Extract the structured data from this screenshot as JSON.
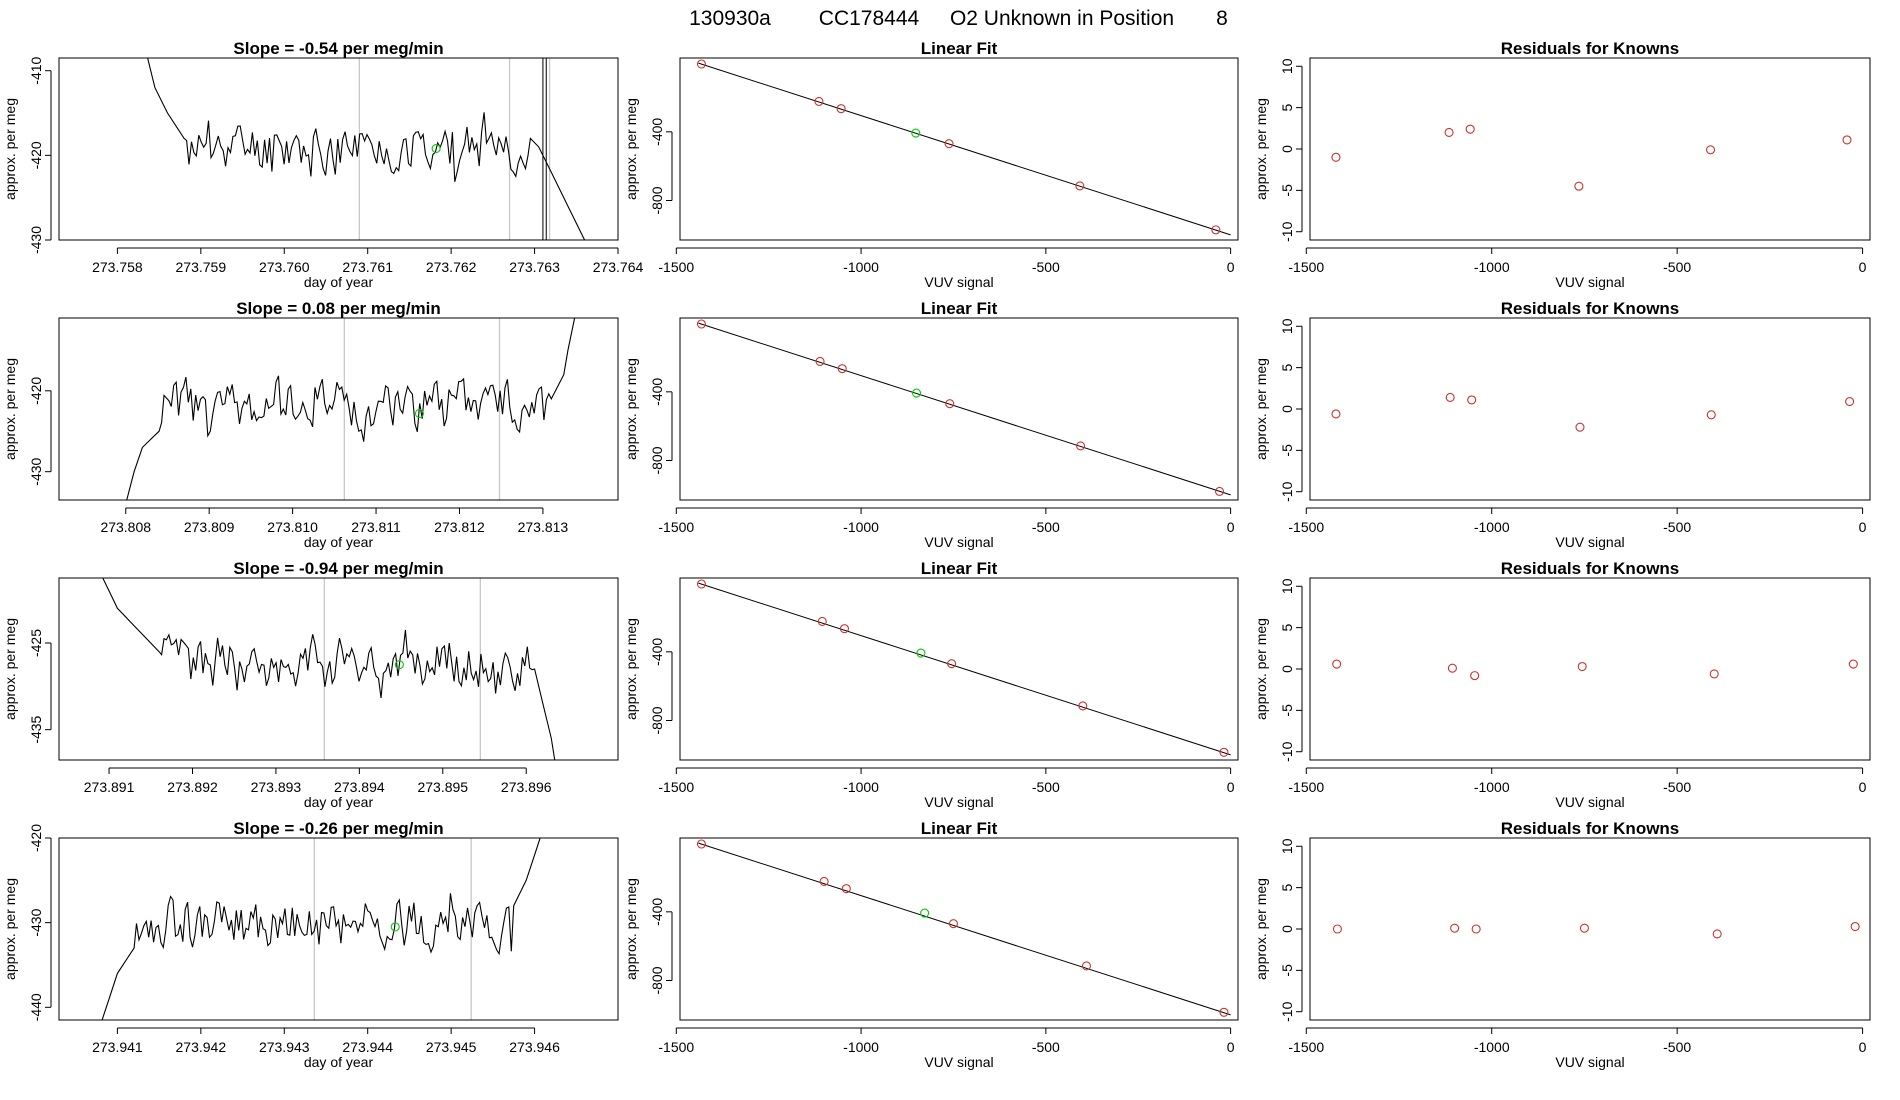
{
  "figure_title": {
    "run": "130930a",
    "tank": "CC178444",
    "description": "O2 Unknown in Position",
    "position": "8"
  },
  "colors": {
    "trace": "#000000",
    "marker_green": "#00cc00",
    "marker_red": "#d0302c",
    "gray_line": "#c8c8c8"
  },
  "chart_data": [
    {
      "type": "line",
      "row": 1,
      "col": 1,
      "title_prefix": "Slope = ",
      "slope": "-0.54",
      "title_suffix": " per meg/min",
      "xlabel": "day of year",
      "ylabel": "approx. per meg",
      "xlim": [
        273.7573,
        273.764
      ],
      "ylim": [
        -430,
        -408.5
      ],
      "xticks": [
        "273.758",
        "273.759",
        "273.760",
        "273.761",
        "273.762",
        "273.763",
        "273.764"
      ],
      "yticks": [
        "-410",
        "-420",
        "-430"
      ],
      "vlines": [
        273.7609,
        273.7627,
        273.76318
      ],
      "dark_vlines": [
        273.7631,
        273.76314
      ],
      "marker": {
        "x": 273.76182,
        "y": -419.2
      },
      "trace": {
        "x_start": 273.7583,
        "x_end": 273.7636,
        "baseline": -419,
        "amp": 1.6,
        "seed": 11,
        "lead": [
          [
            273.7583,
            -406
          ],
          [
            273.75845,
            -412
          ],
          [
            273.7586,
            -415
          ],
          [
            273.7588,
            -418
          ]
        ],
        "tail": [
          [
            273.76295,
            -418
          ],
          [
            273.76305,
            -419
          ],
          [
            273.7632,
            -422
          ],
          [
            273.7634,
            -426
          ],
          [
            273.7636,
            -430
          ]
        ]
      }
    },
    {
      "type": "scatter",
      "row": 1,
      "col": 2,
      "title": "Linear Fit",
      "xlabel": "VUV signal",
      "ylabel": "approx. per meg",
      "xlim": [
        -1490,
        20
      ],
      "ylim": [
        -1030,
        30
      ],
      "xticks": [
        "-1500",
        "-1000",
        "-500",
        "0"
      ],
      "yticks": [
        "-400",
        "-800"
      ],
      "line": [
        [
          -1440,
          0
        ],
        [
          0,
          -1000
        ]
      ],
      "knowns": [
        [
          -1432,
          -5
        ],
        [
          -1114,
          -223
        ],
        [
          -1054,
          -265
        ],
        [
          -762,
          -469
        ],
        [
          -408,
          -715
        ],
        [
          -40,
          -971
        ]
      ],
      "unknown": [
        [
          -852,
          -407
        ]
      ]
    },
    {
      "type": "scatter",
      "row": 1,
      "col": 3,
      "title": "Residuals for Knowns",
      "xlabel": "VUV signal",
      "ylabel": "approx. per meg",
      "xlim": [
        -1490,
        20
      ],
      "ylim": [
        -11,
        11
      ],
      "xticks": [
        "-1500",
        "-1000",
        "-500",
        "0"
      ],
      "yticks": [
        "10",
        "5",
        "0",
        "-5",
        "-10"
      ],
      "knowns": [
        [
          -1420,
          -1.0
        ],
        [
          -1115,
          2.0
        ],
        [
          -1058,
          2.4
        ],
        [
          -765,
          -4.5
        ],
        [
          -410,
          -0.1
        ],
        [
          -42,
          1.1
        ]
      ]
    },
    {
      "type": "line",
      "row": 2,
      "col": 1,
      "title_prefix": "Slope = ",
      "slope": "0.08",
      "title_suffix": " per meg/min",
      "xlabel": "day of year",
      "ylabel": "approx. per meg",
      "xlim": [
        273.8072,
        273.8139
      ],
      "ylim": [
        -433.5,
        -411
      ],
      "xticks": [
        "273.808",
        "273.809",
        "273.810",
        "273.811",
        "273.812",
        "273.813"
      ],
      "yticks": [
        "-420",
        "-430"
      ],
      "vlines": [
        273.81062,
        273.81248
      ],
      "dark_vlines": [],
      "marker": {
        "x": 273.81152,
        "y": -422.8
      },
      "trace": {
        "x_start": 273.8084,
        "x_end": 273.8134,
        "baseline": -421.8,
        "amp": 1.8,
        "seed": 23,
        "lead": [
          [
            273.808,
            -434
          ],
          [
            273.8081,
            -430
          ],
          [
            273.8082,
            -427
          ],
          [
            273.8084,
            -425
          ]
        ],
        "tail": [
          [
            273.8131,
            -421
          ],
          [
            273.81325,
            -418
          ],
          [
            273.8133,
            -415
          ],
          [
            273.8134,
            -410
          ]
        ]
      }
    },
    {
      "type": "scatter",
      "row": 2,
      "col": 2,
      "title": "Linear Fit",
      "xlabel": "VUV signal",
      "ylabel": "approx. per meg",
      "xlim": [
        -1490,
        20
      ],
      "ylim": [
        -1030,
        30
      ],
      "xticks": [
        "-1500",
        "-1000",
        "-500",
        "0"
      ],
      "yticks": [
        "-400",
        "-800"
      ],
      "line": [
        [
          -1440,
          0
        ],
        [
          0,
          -1000
        ]
      ],
      "knowns": [
        [
          -1432,
          -5
        ],
        [
          -1111,
          -223
        ],
        [
          -1051,
          -265
        ],
        [
          -760,
          -469
        ],
        [
          -406,
          -715
        ],
        [
          -30,
          -980
        ]
      ],
      "unknown": [
        [
          -850,
          -407
        ]
      ]
    },
    {
      "type": "scatter",
      "row": 2,
      "col": 3,
      "title": "Residuals for Knowns",
      "xlabel": "VUV signal",
      "ylabel": "approx. per meg",
      "xlim": [
        -1490,
        20
      ],
      "ylim": [
        -11,
        11
      ],
      "xticks": [
        "-1500",
        "-1000",
        "-500",
        "0"
      ],
      "yticks": [
        "10",
        "5",
        "0",
        "-5",
        "-10"
      ],
      "knowns": [
        [
          -1420,
          -0.6
        ],
        [
          -1112,
          1.4
        ],
        [
          -1054,
          1.1
        ],
        [
          -762,
          -2.2
        ],
        [
          -408,
          -0.7
        ],
        [
          -35,
          0.9
        ]
      ]
    },
    {
      "type": "line",
      "row": 3,
      "col": 1,
      "title_prefix": "Slope = ",
      "slope": "-0.94",
      "title_suffix": " per meg/min",
      "xlabel": "day of year",
      "ylabel": "approx. per meg",
      "xlim": [
        273.8904,
        273.8971
      ],
      "ylim": [
        -438.5,
        -417.5
      ],
      "xticks": [
        "273.891",
        "273.892",
        "273.893",
        "273.894",
        "273.895",
        "273.896"
      ],
      "yticks": [
        "-425",
        "-435"
      ],
      "vlines": [
        273.89358,
        273.89545
      ],
      "dark_vlines": [],
      "marker": {
        "x": 273.89448,
        "y": -427.5
      },
      "trace": {
        "x_start": 273.8917,
        "x_end": 273.8961,
        "baseline": -427.3,
        "amp": 1.6,
        "seed": 37,
        "lead": [
          [
            273.8909,
            -417
          ],
          [
            273.891,
            -419
          ],
          [
            273.8911,
            -421
          ],
          [
            273.8913,
            -423
          ],
          [
            273.8916,
            -426
          ]
        ],
        "tail": [
          [
            273.8961,
            -428
          ],
          [
            273.8962,
            -432
          ],
          [
            273.8963,
            -436
          ],
          [
            273.89635,
            -439
          ]
        ]
      }
    },
    {
      "type": "scatter",
      "row": 3,
      "col": 2,
      "title": "Linear Fit",
      "xlabel": "VUV signal",
      "ylabel": "approx. per meg",
      "xlim": [
        -1490,
        20
      ],
      "ylim": [
        -1030,
        30
      ],
      "xticks": [
        "-1500",
        "-1000",
        "-500",
        "0"
      ],
      "yticks": [
        "-400",
        "-800"
      ],
      "line": [
        [
          -1440,
          0
        ],
        [
          0,
          -1000
        ]
      ],
      "knowns": [
        [
          -1432,
          -5
        ],
        [
          -1105,
          -223
        ],
        [
          -1045,
          -265
        ],
        [
          -755,
          -469
        ],
        [
          -400,
          -715
        ],
        [
          -18,
          -985
        ]
      ],
      "unknown": [
        [
          -838,
          -407
        ]
      ]
    },
    {
      "type": "scatter",
      "row": 3,
      "col": 3,
      "title": "Residuals for Knowns",
      "xlabel": "VUV signal",
      "ylabel": "approx. per meg",
      "xlim": [
        -1490,
        20
      ],
      "ylim": [
        -11,
        11
      ],
      "xticks": [
        "-1500",
        "-1000",
        "-500",
        "0"
      ],
      "yticks": [
        "10",
        "5",
        "0",
        "-5",
        "-10"
      ],
      "knowns": [
        [
          -1418,
          0.6
        ],
        [
          -1106,
          0.1
        ],
        [
          -1046,
          -0.8
        ],
        [
          -756,
          0.3
        ],
        [
          -400,
          -0.6
        ],
        [
          -25,
          0.6
        ]
      ]
    },
    {
      "type": "line",
      "row": 4,
      "col": 1,
      "title_prefix": "Slope = ",
      "slope": "-0.26",
      "title_suffix": " per meg/min",
      "xlabel": "day of year",
      "ylabel": "approx. per meg",
      "xlim": [
        273.9403,
        273.947
      ],
      "ylim": [
        -441.5,
        -420
      ],
      "xticks": [
        "273.941",
        "273.942",
        "273.943",
        "273.944",
        "273.945",
        "273.946"
      ],
      "yticks": [
        "-420",
        "-430",
        "-440"
      ],
      "vlines": [
        273.94336,
        273.94524
      ],
      "dark_vlines": [],
      "marker": {
        "x": 273.94433,
        "y": -430.5
      },
      "trace": {
        "x_start": 273.9413,
        "x_end": 273.9459,
        "baseline": -430.2,
        "amp": 1.6,
        "seed": 53,
        "lead": [
          [
            273.9408,
            -442
          ],
          [
            273.9409,
            -439
          ],
          [
            273.941,
            -436
          ],
          [
            273.9412,
            -433
          ]
        ],
        "tail": [
          [
            273.94575,
            -428
          ],
          [
            273.9459,
            -425
          ],
          [
            273.946,
            -422
          ],
          [
            273.9461,
            -419
          ]
        ]
      }
    },
    {
      "type": "scatter",
      "row": 4,
      "col": 2,
      "title": "Linear Fit",
      "xlabel": "VUV signal",
      "ylabel": "approx. per meg",
      "xlim": [
        -1490,
        20
      ],
      "ylim": [
        -1030,
        30
      ],
      "xticks": [
        "-1500",
        "-1000",
        "-500",
        "0"
      ],
      "yticks": [
        "-400",
        "-800"
      ],
      "line": [
        [
          -1440,
          0
        ],
        [
          0,
          -1000
        ]
      ],
      "knowns": [
        [
          -1432,
          -5
        ],
        [
          -1100,
          -223
        ],
        [
          -1040,
          -265
        ],
        [
          -750,
          -469
        ],
        [
          -390,
          -715
        ],
        [
          -18,
          -985
        ]
      ],
      "unknown": [
        [
          -828,
          -407
        ]
      ]
    },
    {
      "type": "scatter",
      "row": 4,
      "col": 3,
      "title": "Residuals for Knowns",
      "xlabel": "VUV signal",
      "ylabel": "approx. per meg",
      "xlim": [
        -1490,
        20
      ],
      "ylim": [
        -11,
        11
      ],
      "xticks": [
        "-1500",
        "-1000",
        "-500",
        "0"
      ],
      "yticks": [
        "10",
        "5",
        "0",
        "-5",
        "-10"
      ],
      "knowns": [
        [
          -1416,
          0.0
        ],
        [
          -1100,
          0.1
        ],
        [
          -1042,
          0.0
        ],
        [
          -750,
          0.1
        ],
        [
          -392,
          -0.6
        ],
        [
          -20,
          0.3
        ]
      ]
    }
  ]
}
